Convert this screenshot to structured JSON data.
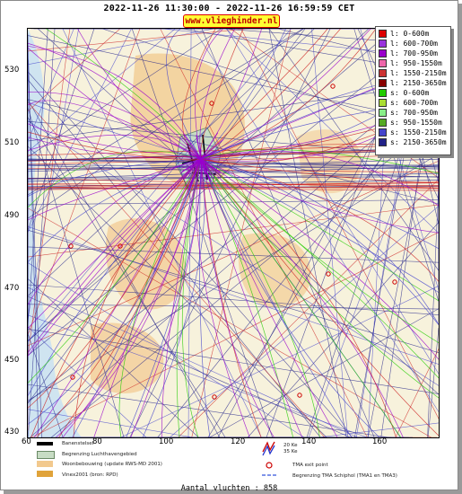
{
  "header": {
    "period": "2022-11-26 11:30:00 - 2022-11-26 16:59:59 CET",
    "site": "www.vlieghinder.nl"
  },
  "axes": {
    "y_ticks": [
      "530",
      "510",
      "490",
      "470",
      "450",
      "430"
    ],
    "x_ticks": [
      "60",
      "80",
      "100",
      "120",
      "140",
      "160"
    ]
  },
  "legend": [
    {
      "label": "l: 0-600m",
      "color": "#dd0000"
    },
    {
      "label": "l: 600-700m",
      "color": "#9933dd"
    },
    {
      "label": "l: 700-950m",
      "color": "#9900cc"
    },
    {
      "label": "l: 950-1550m",
      "color": "#ee66aa"
    },
    {
      "label": "l: 1550-2150m",
      "color": "#cc3333"
    },
    {
      "label": "l: 2150-3650m",
      "color": "#880000"
    },
    {
      "label": "s: 0-600m",
      "color": "#22cc00"
    },
    {
      "label": "s: 600-700m",
      "color": "#aadd33"
    },
    {
      "label": "s: 700-950m",
      "color": "#88ee88"
    },
    {
      "label": "s: 950-1550m",
      "color": "#55aa22"
    },
    {
      "label": "s: 1550-2150m",
      "color": "#4444cc"
    },
    {
      "label": "s: 2150-3650m",
      "color": "#222288"
    }
  ],
  "bottom_legend": {
    "runway": "Banenstelsel",
    "airport_boundary": "Begrenzing Luchthavengebied",
    "housing": "Woonbebouwing (update RWS-MD 2001)",
    "vinex": "Vinex2001 (bron: RPD)",
    "kv20": "20 Ke",
    "kv35": "35 Ke",
    "tma_exit": "TMA exit point",
    "tma_boundary": "Begrenzing TMA Schiphol  (TMA1 en TMA3)"
  },
  "footer": {
    "count": "Aantal vluchten : 858"
  },
  "colors": {
    "sea": "#cfe4f0",
    "land": "#f7f2dc",
    "urban": "#f2c98e",
    "track_dark": "#222288",
    "track_blue": "#4444cc",
    "track_red": "#cc2222",
    "track_purple": "#9900cc",
    "track_green": "#22cc00"
  }
}
